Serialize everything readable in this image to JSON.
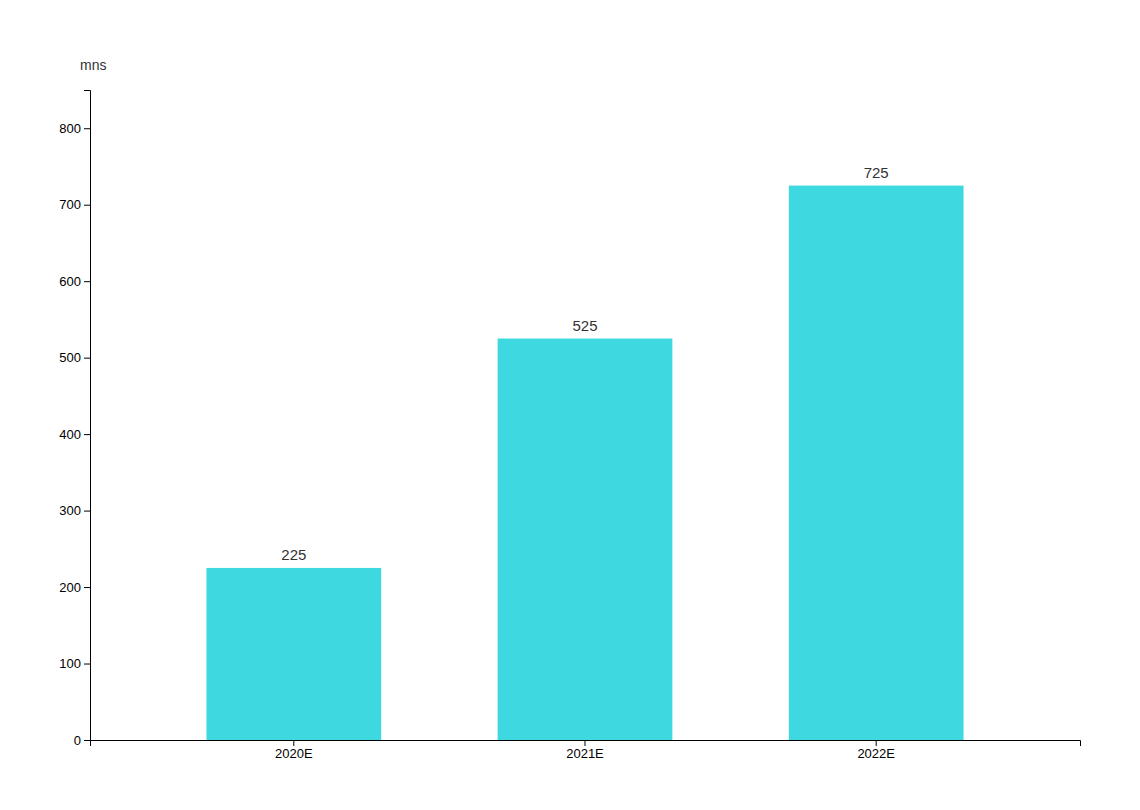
{
  "chart_data": {
    "type": "bar",
    "ylabel": "mns",
    "categories": [
      "2020E",
      "2021E",
      "2022E"
    ],
    "values": [
      225,
      525,
      725
    ],
    "color": "#3dd8e0",
    "ylim": [
      0,
      850
    ],
    "yticks": [
      0,
      100,
      200,
      300,
      400,
      500,
      600,
      700,
      800
    ],
    "grid": false,
    "data_labels": true
  }
}
